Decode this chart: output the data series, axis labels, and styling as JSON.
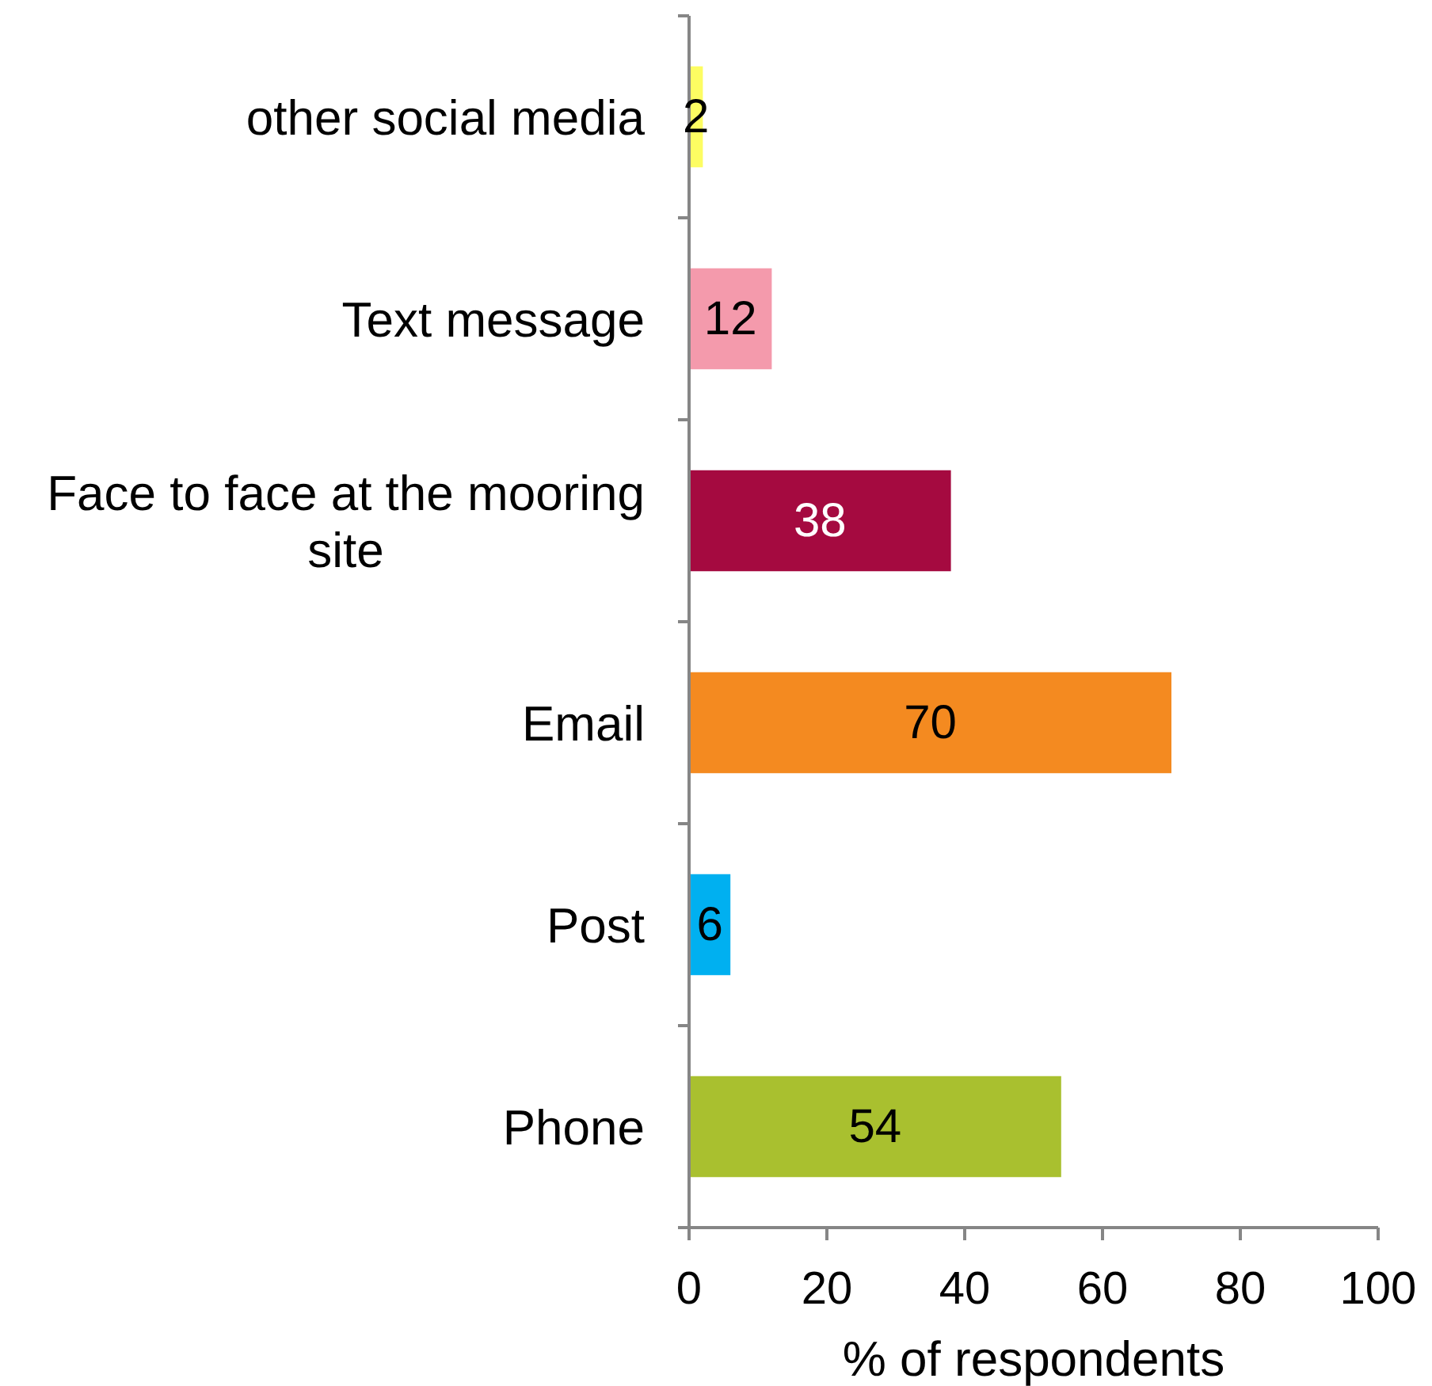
{
  "chart_data": {
    "type": "bar",
    "orientation": "horizontal",
    "categories": [
      "other social media",
      "Text message",
      "Face to face at the mooring site",
      "Email",
      "Post",
      "Phone"
    ],
    "values": [
      2,
      12,
      38,
      70,
      6,
      54
    ],
    "colors": [
      "#fdfd62",
      "#f49aac",
      "#a50a40",
      "#f48a20",
      "#00b0f0",
      "#a9c02f"
    ],
    "xlabel": "% of respondents",
    "xlim": [
      0,
      100
    ],
    "xticks": [
      0,
      20,
      40,
      60,
      80,
      100
    ],
    "data_labels": true
  }
}
